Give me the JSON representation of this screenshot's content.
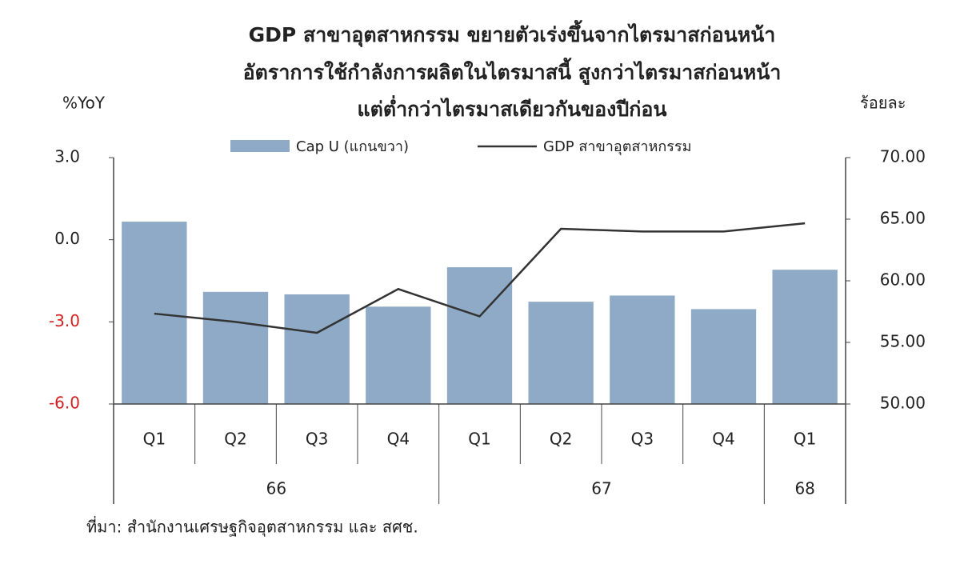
{
  "chart_data": {
    "type": "bar_line",
    "title": [
      "GDP สาขาอุตสาหกรรม ขยายตัวเร่งขึ้นจากไตรมาสก่อนหน้า",
      "อัตราการใช้กำลังการผลิตในไตรมาสนี้ สูงกว่าไตรมาสก่อนหน้า",
      "แต่ต่ำกว่าไตรมาสเดียวกันของปีก่อน"
    ],
    "y_label": "%YoY",
    "y2_label": "ร้อยละ",
    "categories": [
      "Q1",
      "Q2",
      "Q3",
      "Q4",
      "Q1",
      "Q2",
      "Q3",
      "Q4",
      "Q1"
    ],
    "group_labels": [
      "66",
      null,
      null,
      null,
      "67",
      null,
      null,
      null,
      "68"
    ],
    "series": [
      {
        "name": "Cap U (แกนขวา)",
        "kind": "bar",
        "axis": "y2",
        "color": "#8eaac6",
        "values": [
          64.8,
          59.1,
          58.9,
          57.9,
          61.1,
          58.3,
          58.8,
          57.7,
          60.9
        ]
      },
      {
        "name": "GDP สาขาอุตสาหกรรม",
        "kind": "line",
        "axis": "y",
        "color": "#333333",
        "values": [
          -2.7,
          -3.0,
          -3.4,
          -1.8,
          -2.8,
          0.4,
          0.3,
          0.3,
          0.6
        ]
      }
    ],
    "ylim": [
      -6,
      3
    ],
    "yticks": [
      {
        "value": 3,
        "label": "3.0"
      },
      {
        "value": 0,
        "label": "0.0"
      },
      {
        "value": -3,
        "label": "-3.0"
      },
      {
        "value": -6,
        "label": "-6.0"
      }
    ],
    "negative_tick_color": "#d42020",
    "y2lim": [
      50,
      70
    ],
    "y2ticks": [
      {
        "value": 70,
        "label": "70.00"
      },
      {
        "value": 65,
        "label": "65.00"
      },
      {
        "value": 60,
        "label": "60.00"
      },
      {
        "value": 55,
        "label": "55.00"
      },
      {
        "value": 50,
        "label": "50.00"
      }
    ],
    "source": "ที่มา: สำนักงานเศรษฐกิจอุตสาหกรรม และ สศช."
  }
}
